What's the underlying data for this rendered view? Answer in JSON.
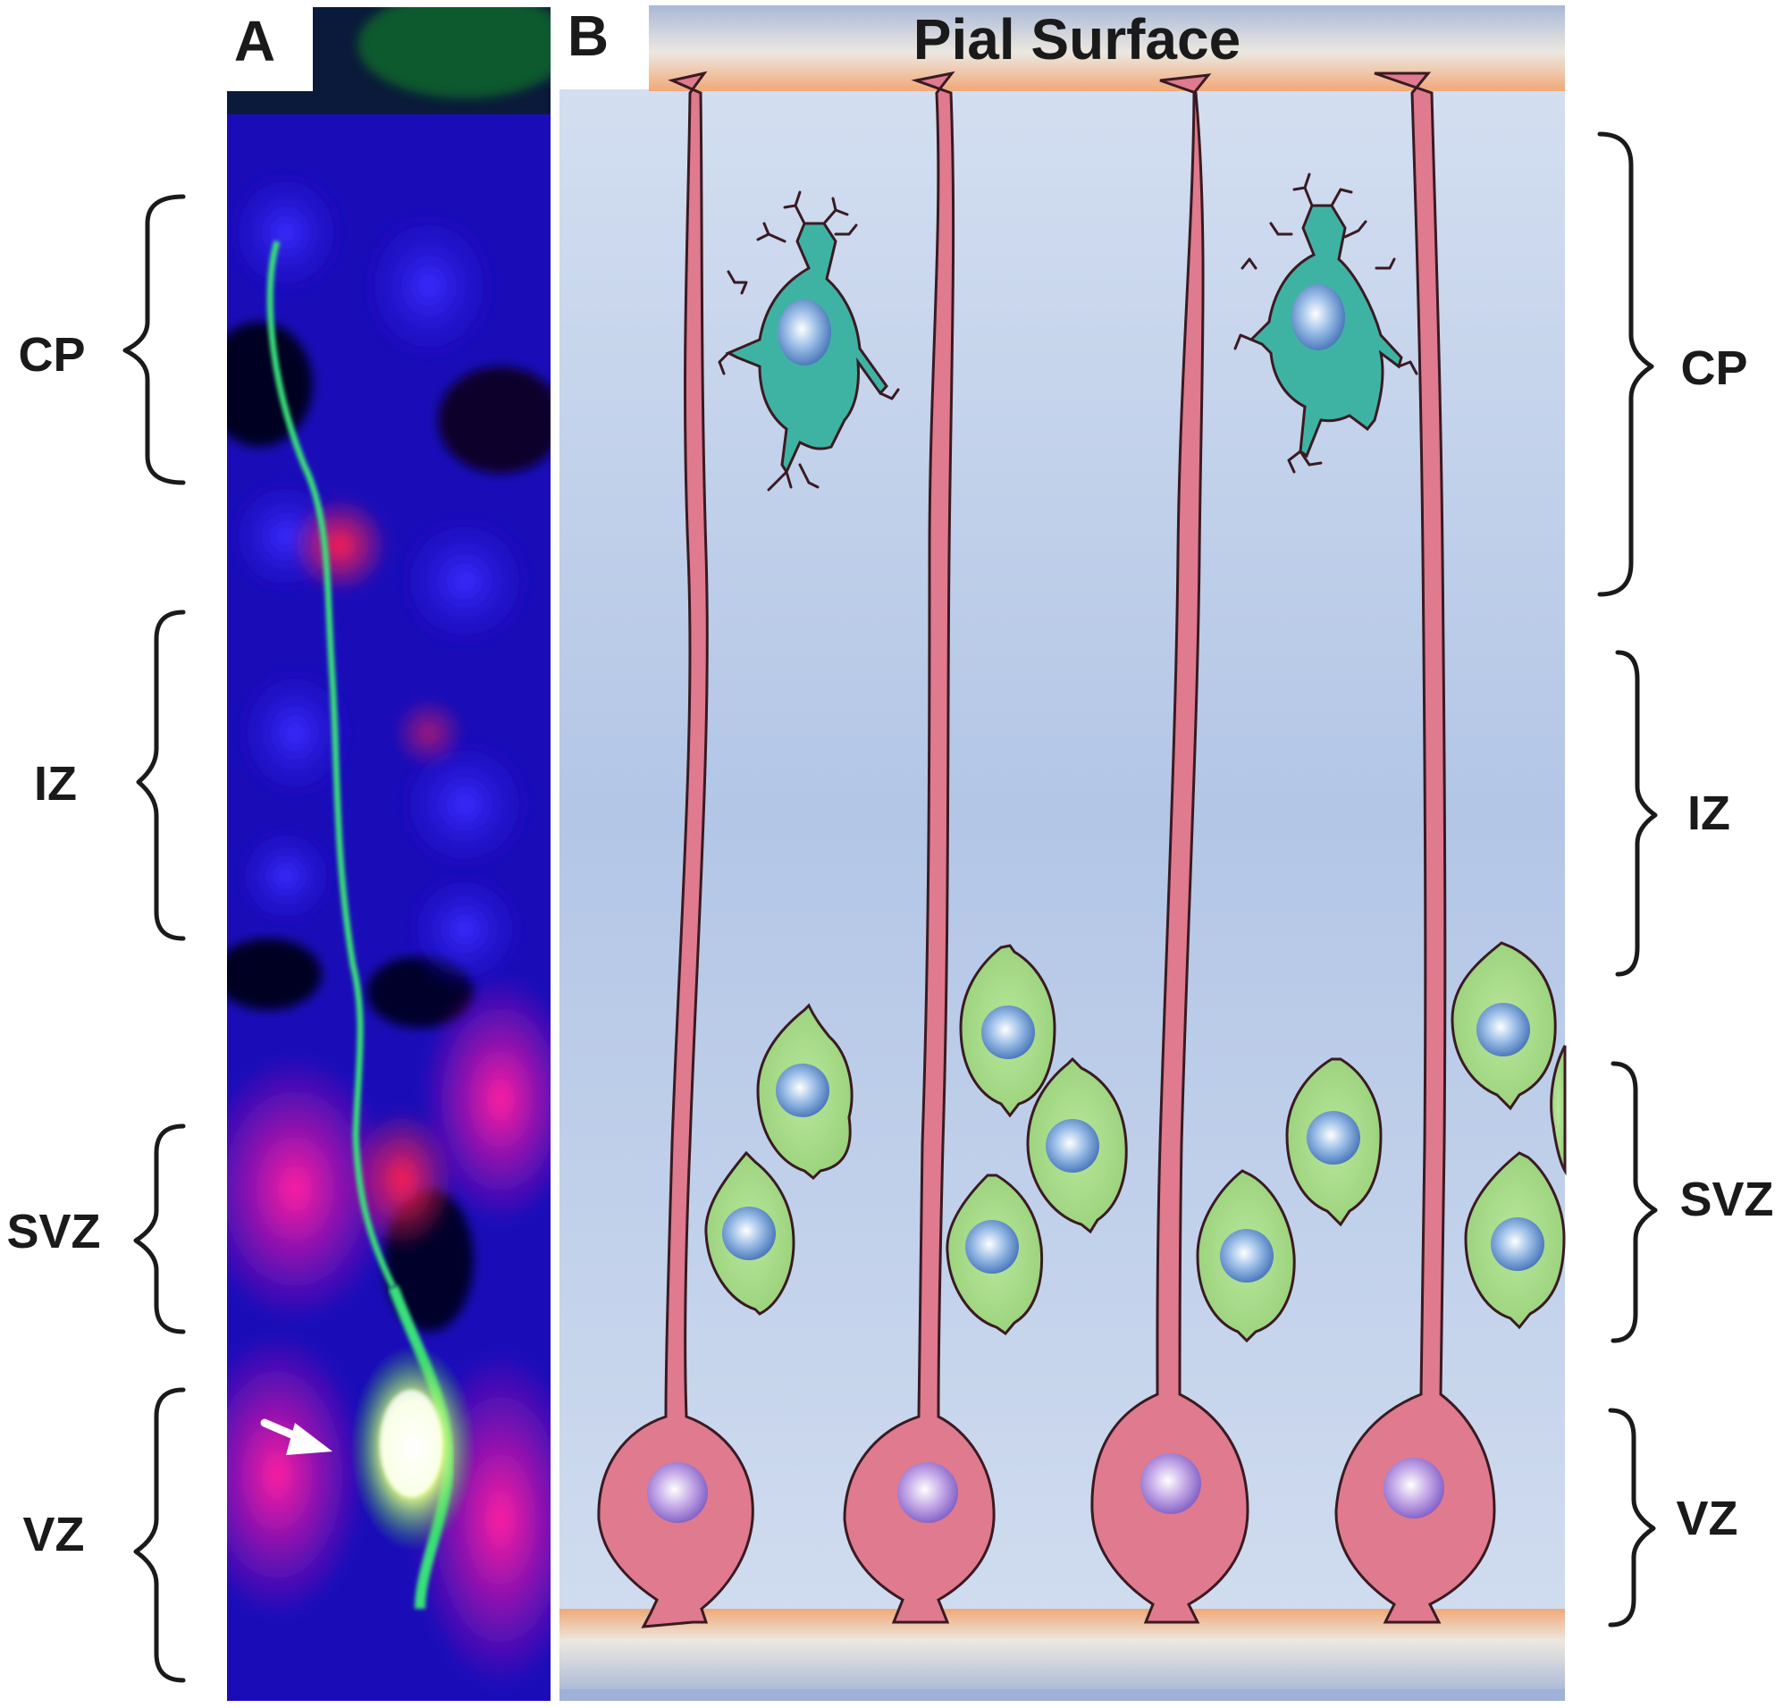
{
  "panel_a": {
    "letter": "A",
    "zones": {
      "cp": "CP",
      "iz": "IZ",
      "svz": "SVZ",
      "vz": "VZ"
    }
  },
  "panel_b": {
    "letter": "B",
    "title": "Pial Surface",
    "zones": {
      "cp": "CP",
      "iz": "IZ",
      "svz": "SVZ",
      "vz": "VZ"
    }
  },
  "colors": {
    "radial_glia": "#e07a8f",
    "neuron": "#3fb3a3",
    "intermediate_progenitor": "#a8d98a",
    "pial_band": "#f2b489",
    "background_blue": "#b8c9e6"
  }
}
